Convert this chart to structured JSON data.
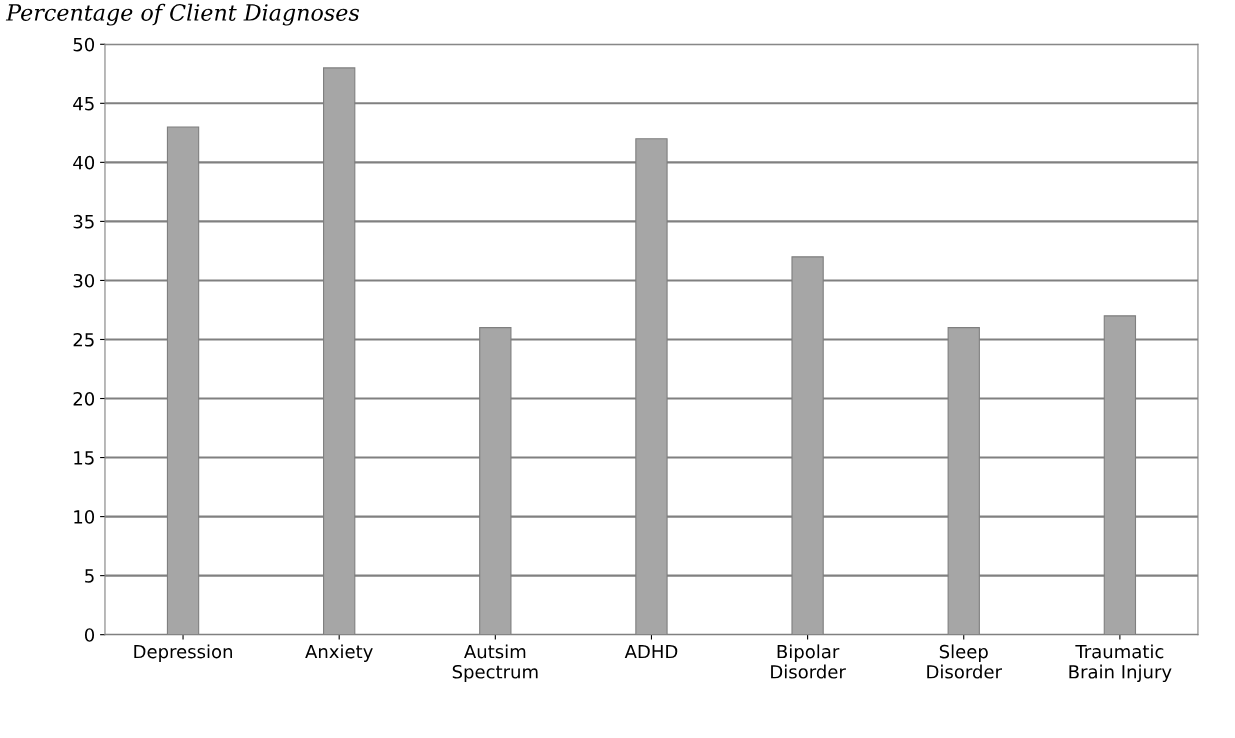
{
  "chart_data": {
    "type": "bar",
    "title": "Percentage of Client Diagnoses",
    "categories": [
      "Depression",
      "Anxiety",
      "Autsim\nSpectrum",
      "ADHD",
      "Bipolar\nDisorder",
      "Sleep\nDisorder",
      "Traumatic\nBrain Injury"
    ],
    "values": [
      43,
      48,
      26,
      42,
      32,
      26,
      27
    ],
    "color": "#a6a6a6",
    "ylim": [
      0,
      50
    ],
    "yticks": [
      0,
      5,
      10,
      15,
      20,
      25,
      30,
      35,
      40,
      45,
      50
    ],
    "grid": "y",
    "legend": false
  }
}
